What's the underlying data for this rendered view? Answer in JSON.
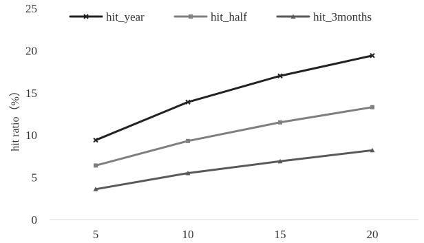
{
  "chart_data": {
    "type": "line",
    "title": "",
    "xlabel": "",
    "ylabel": "hit ratio（%）",
    "categories": [
      "5",
      "10",
      "15",
      "20"
    ],
    "ylim": [
      0,
      25
    ],
    "yticks": [
      0,
      5,
      10,
      15,
      20,
      25
    ],
    "grid": false,
    "legend": "top",
    "series": [
      {
        "name": "hit_year",
        "values": [
          9.4,
          13.9,
          17.0,
          19.4
        ],
        "color": "#222222",
        "marker": "x"
      },
      {
        "name": "hit_half",
        "values": [
          6.4,
          9.3,
          11.5,
          13.3
        ],
        "color": "#7f7f7f",
        "marker": "square"
      },
      {
        "name": "hit_3months",
        "values": [
          3.6,
          5.5,
          6.9,
          8.2
        ],
        "color": "#595959",
        "marker": "triangle"
      }
    ]
  }
}
